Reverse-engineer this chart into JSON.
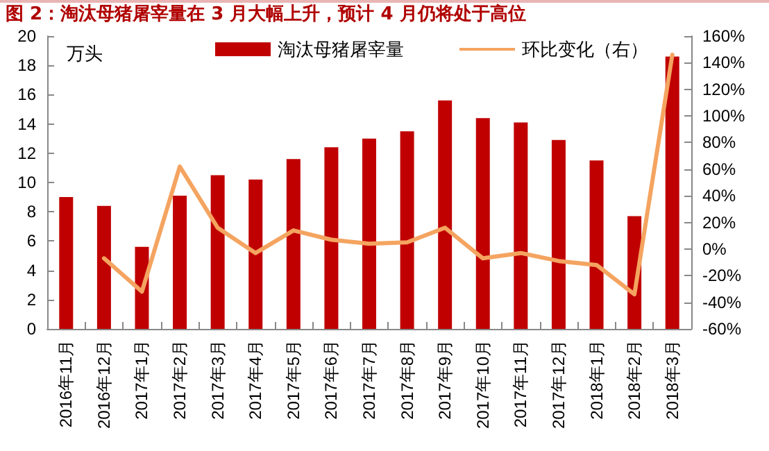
{
  "chart_data": {
    "type": "bar",
    "title": "图 2：淘汰母猪屠宰量在 3 月大幅上升，预计 4 月仍将处于高位",
    "ylabel": "万头",
    "categories": [
      "2016年11月",
      "2016年12月",
      "2017年1月",
      "2017年2月",
      "2017年3月",
      "2017年4月",
      "2017年5月",
      "2017年6月",
      "2017年7月",
      "2017年8月",
      "2017年9月",
      "2017年10月",
      "2017年11月",
      "2017年12月",
      "2018年1月",
      "2018年2月",
      "2018年3月"
    ],
    "series": [
      {
        "name": "淘汰母猪屠宰量",
        "color": "#c00000",
        "values": [
          9.0,
          8.4,
          5.6,
          9.1,
          10.5,
          10.2,
          11.6,
          12.4,
          13.0,
          13.5,
          15.6,
          14.4,
          14.1,
          12.9,
          11.5,
          7.7,
          18.6
        ]
      },
      {
        "name": "环比变化（右）",
        "type": "line",
        "axis": "y2",
        "color": "#f4a460",
        "values": [
          null,
          -7,
          -32,
          62,
          16,
          -3,
          14,
          7,
          4,
          5,
          16,
          -7,
          -3,
          -9,
          -12,
          -34,
          146
        ]
      }
    ],
    "ylim": [
      0,
      20
    ],
    "yticks": [
      0,
      2,
      4,
      6,
      8,
      10,
      12,
      14,
      16,
      18,
      20
    ],
    "y2lim": [
      -60,
      160
    ],
    "y2ticks": [
      {
        "value": -60,
        "label": "-60%"
      },
      {
        "value": -40,
        "label": "-40%"
      },
      {
        "value": -20,
        "label": "-20%"
      },
      {
        "value": 0,
        "label": "0%"
      },
      {
        "value": 20,
        "label": "20%"
      },
      {
        "value": 40,
        "label": "40%"
      },
      {
        "value": 60,
        "label": "60%"
      },
      {
        "value": 80,
        "label": "80%"
      },
      {
        "value": 100,
        "label": "100%"
      },
      {
        "value": 120,
        "label": "120%"
      },
      {
        "value": 140,
        "label": "140%"
      },
      {
        "value": 160,
        "label": "160%"
      }
    ],
    "legend": "top",
    "grid": false,
    "marker": "none",
    "line_style": "solid"
  }
}
